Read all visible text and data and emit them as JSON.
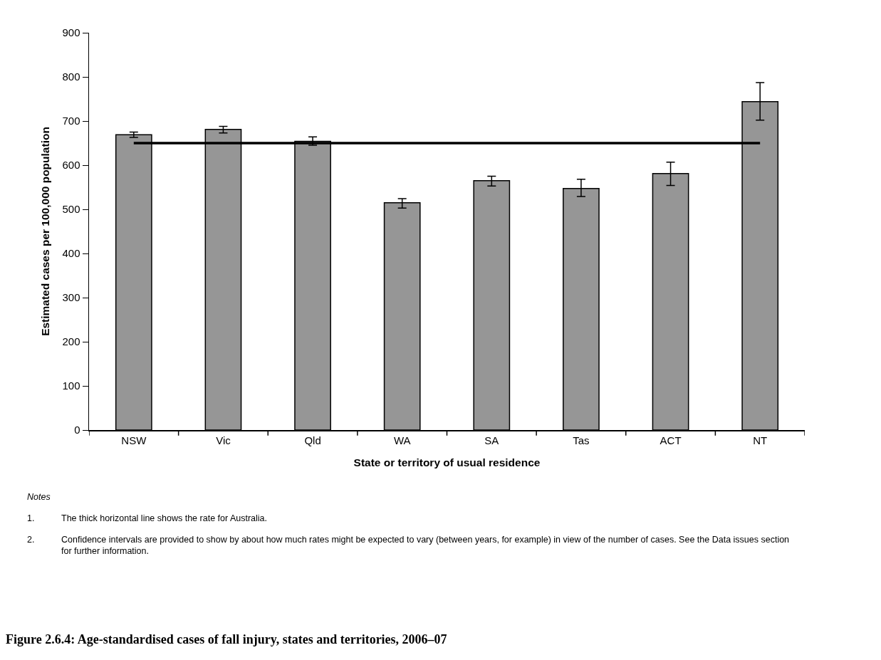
{
  "chart_data": {
    "type": "bar",
    "title": "Figure 2.6.4: Age-standardised cases of fall injury, states and territories, 2006–07",
    "xlabel": "State or territory of usual residence",
    "ylabel": "Estimated cases per 100,000 population",
    "categories": [
      "NSW",
      "Vic",
      "Qld",
      "WA",
      "SA",
      "Tas",
      "ACT",
      "NT"
    ],
    "values": [
      669,
      681,
      654,
      515,
      565,
      547,
      581,
      744
    ],
    "errors": [
      [
        663,
        675
      ],
      [
        673,
        688
      ],
      [
        645,
        664
      ],
      [
        503,
        524
      ],
      [
        553,
        575
      ],
      [
        529,
        568
      ],
      [
        554,
        607
      ],
      [
        702,
        787
      ]
    ],
    "color": "#969696",
    "ylim": [
      0,
      900
    ],
    "yticks": [
      0,
      100,
      200,
      300,
      400,
      500,
      600,
      700,
      800,
      900
    ],
    "grid": false,
    "ref_lines": [
      {
        "axis": "y",
        "value": 650,
        "color": "#000000",
        "line_style": "solid"
      }
    ],
    "annotations": [
      "Notes",
      "1.\tThe thick horizontal line shows the rate for Australia.",
      "2.\tConfidence intervals are provided to show by about how much rates might be expected to vary (between years, for example) in view of the number of cases. See the Data issues section for further information."
    ]
  }
}
